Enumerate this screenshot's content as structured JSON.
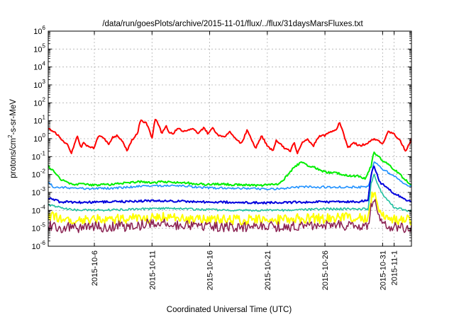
{
  "chart_data": {
    "type": "line",
    "title": "/data/run/goesPlots/archive/2015-11-01/flux/../flux/31daysMarsFluxes.txt",
    "xlabel": "Coordinated Universal Time (UTC)",
    "ylabel": {
      "base": "protons/cm",
      "sup": "2",
      "rest": "-s-sr-MeV"
    },
    "yscale": "log",
    "ylim": [
      1e-06,
      1000000.0
    ],
    "xlim": [
      "2015-10-02",
      "2015-11-02T12:00"
    ],
    "grid": true,
    "x_ticks": [
      "2015-10-6",
      "2015-10-11",
      "2015-10-16",
      "2015-10-21",
      "2015-10-26",
      "2015-10-31",
      "2015-11-1"
    ],
    "y_ticks": [
      {
        "base": "10",
        "exp": "-6"
      },
      {
        "base": "10",
        "exp": "-5"
      },
      {
        "base": "10",
        "exp": "-4"
      },
      {
        "base": "10",
        "exp": "-3"
      },
      {
        "base": "10",
        "exp": "-2"
      },
      {
        "base": "10",
        "exp": "-1"
      },
      {
        "base": "10",
        "exp": "0"
      },
      {
        "base": "10",
        "exp": "1"
      },
      {
        "base": "10",
        "exp": "2"
      },
      {
        "base": "10",
        "exp": "3"
      },
      {
        "base": "10",
        "exp": "4"
      },
      {
        "base": "10",
        "exp": "5"
      },
      {
        "base": "10",
        "exp": "6"
      }
    ],
    "series": [
      {
        "color": "#ff0000",
        "width": 2,
        "points": [
          [
            "2015-10-02",
            4
          ],
          [
            "2015-10-02T18:00",
            1.8
          ],
          [
            "2015-10-03T06:00",
            0.8
          ],
          [
            "2015-10-03T18:00",
            0.4
          ],
          [
            "2015-10-04",
            0.15
          ],
          [
            "2015-10-04T12:00",
            1.5
          ],
          [
            "2015-10-04T20:00",
            0.3
          ],
          [
            "2015-10-05",
            0.6
          ],
          [
            "2015-10-05T12:00",
            0.35
          ],
          [
            "2015-10-06",
            0.3
          ],
          [
            "2015-10-06T08:00",
            1.5
          ],
          [
            "2015-10-06T18:00",
            1.2
          ],
          [
            "2015-10-07T06:00",
            0.5
          ],
          [
            "2015-10-07T14:00",
            1.2
          ],
          [
            "2015-10-08",
            1.5
          ],
          [
            "2015-10-08T12:00",
            0.6
          ],
          [
            "2015-10-08T20:00",
            0.2
          ],
          [
            "2015-10-09T06:00",
            0.8
          ],
          [
            "2015-10-09T18:00",
            2
          ],
          [
            "2015-10-10",
            12
          ],
          [
            "2015-10-10T06:00",
            9
          ],
          [
            "2015-10-10T12:00",
            8
          ],
          [
            "2015-10-10T18:00",
            3
          ],
          [
            "2015-10-11",
            1
          ],
          [
            "2015-10-11T06:00",
            12
          ],
          [
            "2015-10-11T12:00",
            8
          ],
          [
            "2015-10-11T20:00",
            2
          ],
          [
            "2015-10-12T06:00",
            5
          ],
          [
            "2015-10-12T12:00",
            2
          ],
          [
            "2015-10-12T20:00",
            2
          ],
          [
            "2015-10-13T06:00",
            4
          ],
          [
            "2015-10-13T16:00",
            2.5
          ],
          [
            "2015-10-14",
            3
          ],
          [
            "2015-10-14T12:00",
            3.5
          ],
          [
            "2015-10-15",
            2
          ],
          [
            "2015-10-15T12:00",
            4
          ],
          [
            "2015-10-15T20:00",
            2
          ],
          [
            "2015-10-16T06:00",
            4
          ],
          [
            "2015-10-16T18:00",
            1.5
          ],
          [
            "2015-10-17T06:00",
            1.2
          ],
          [
            "2015-10-17T18:00",
            2.5
          ],
          [
            "2015-10-18T06:00",
            1
          ],
          [
            "2015-10-18T18:00",
            0.5
          ],
          [
            "2015-10-19T06:00",
            3
          ],
          [
            "2015-10-19T16:00",
            0.8
          ],
          [
            "2015-10-20",
            0.3
          ],
          [
            "2015-10-20T12:00",
            1.5
          ],
          [
            "2015-10-21",
            0.4
          ],
          [
            "2015-10-21T12:00",
            0.2
          ],
          [
            "2015-10-21T18:00",
            0.8
          ],
          [
            "2015-10-22",
            0.6
          ],
          [
            "2015-10-22T12:00",
            0.3
          ],
          [
            "2015-10-23",
            0.2
          ],
          [
            "2015-10-23T08:00",
            0.7
          ],
          [
            "2015-10-23T14:00",
            0.15
          ],
          [
            "2015-10-24",
            0.6
          ],
          [
            "2015-10-24T12:00",
            0.9
          ],
          [
            "2015-10-25",
            0.4
          ],
          [
            "2015-10-25T12:00",
            1.5
          ],
          [
            "2015-10-26",
            1.5
          ],
          [
            "2015-10-26T12:00",
            2.5
          ],
          [
            "2015-10-27",
            3
          ],
          [
            "2015-10-27T06:00",
            8
          ],
          [
            "2015-10-27T12:00",
            3
          ],
          [
            "2015-10-28",
            0.3
          ],
          [
            "2015-10-28T12:00",
            0.6
          ],
          [
            "2015-10-29",
            0.4
          ],
          [
            "2015-10-29T12:00",
            0.5
          ],
          [
            "2015-10-30",
            0.8
          ],
          [
            "2015-10-30T12:00",
            1
          ],
          [
            "2015-10-31",
            0.5
          ],
          [
            "2015-10-31T12:00",
            2.5
          ],
          [
            "2015-11-01",
            1.8
          ],
          [
            "2015-11-01T12:00",
            0.8
          ],
          [
            "2015-11-02",
            0.2
          ],
          [
            "2015-11-02T12:00",
            1
          ]
        ]
      },
      {
        "color": "#00ee00",
        "width": 2,
        "points": [
          [
            "2015-10-02",
            0.03
          ],
          [
            "2015-10-02T12:00",
            0.015
          ],
          [
            "2015-10-03",
            0.006
          ],
          [
            "2015-10-03T12:00",
            0.004
          ],
          [
            "2015-10-04",
            0.003
          ],
          [
            "2015-10-05",
            0.0028
          ],
          [
            "2015-10-06",
            0.0026
          ],
          [
            "2015-10-07",
            0.0027
          ],
          [
            "2015-10-08",
            0.003
          ],
          [
            "2015-10-09",
            0.0035
          ],
          [
            "2015-10-10",
            0.004
          ],
          [
            "2015-10-11",
            0.0035
          ],
          [
            "2015-10-12",
            0.004
          ],
          [
            "2015-10-13",
            0.0036
          ],
          [
            "2015-10-14",
            0.0034
          ],
          [
            "2015-10-15",
            0.003
          ],
          [
            "2015-10-16",
            0.0028
          ],
          [
            "2015-10-17",
            0.003
          ],
          [
            "2015-10-18",
            0.0027
          ],
          [
            "2015-10-19",
            0.0026
          ],
          [
            "2015-10-20",
            0.0025
          ],
          [
            "2015-10-21",
            0.0026
          ],
          [
            "2015-10-22",
            0.0028
          ],
          [
            "2015-10-22T12:00",
            0.006
          ],
          [
            "2015-10-23",
            0.015
          ],
          [
            "2015-10-23T12:00",
            0.03
          ],
          [
            "2015-10-24",
            0.055
          ],
          [
            "2015-10-24T12:00",
            0.03
          ],
          [
            "2015-10-25",
            0.03
          ],
          [
            "2015-10-25T12:00",
            0.018
          ],
          [
            "2015-10-26",
            0.014
          ],
          [
            "2015-10-27",
            0.012
          ],
          [
            "2015-10-28",
            0.009
          ],
          [
            "2015-10-29",
            0.008
          ],
          [
            "2015-10-29T12:00",
            0.006
          ],
          [
            "2015-10-30",
            0.03
          ],
          [
            "2015-10-30T06:00",
            0.18
          ],
          [
            "2015-10-30T12:00",
            0.12
          ],
          [
            "2015-10-31",
            0.06
          ],
          [
            "2015-11-01",
            0.02
          ],
          [
            "2015-11-02",
            0.005
          ],
          [
            "2015-11-02T12:00",
            0.0025
          ]
        ]
      },
      {
        "color": "#1e90ff",
        "width": 1.6,
        "points": [
          [
            "2015-10-02",
            0.0035
          ],
          [
            "2015-10-02T12:00",
            0.002
          ],
          [
            "2015-10-04",
            0.0018
          ],
          [
            "2015-10-06",
            0.0016
          ],
          [
            "2015-10-08",
            0.0018
          ],
          [
            "2015-10-10",
            0.0022
          ],
          [
            "2015-10-12",
            0.0024
          ],
          [
            "2015-10-14",
            0.0022
          ],
          [
            "2015-10-16",
            0.0018
          ],
          [
            "2015-10-18",
            0.0017
          ],
          [
            "2015-10-20",
            0.0016
          ],
          [
            "2015-10-22",
            0.0016
          ],
          [
            "2015-10-23",
            0.0018
          ],
          [
            "2015-10-24",
            0.002
          ],
          [
            "2015-10-26",
            0.002
          ],
          [
            "2015-10-28",
            0.002
          ],
          [
            "2015-10-29T18:00",
            0.002
          ],
          [
            "2015-10-30",
            0.008
          ],
          [
            "2015-10-30T06:00",
            0.05
          ],
          [
            "2015-10-30T12:00",
            0.04
          ],
          [
            "2015-10-31",
            0.02
          ],
          [
            "2015-11-01",
            0.008
          ],
          [
            "2015-11-02",
            0.003
          ],
          [
            "2015-11-02T12:00",
            0.002
          ]
        ]
      },
      {
        "color": "#0000dd",
        "width": 2,
        "points": [
          [
            "2015-10-02",
            0.0005
          ],
          [
            "2015-10-03",
            0.0003
          ],
          [
            "2015-10-05",
            0.00028
          ],
          [
            "2015-10-07",
            0.0003
          ],
          [
            "2015-10-09",
            0.00032
          ],
          [
            "2015-10-11",
            0.00035
          ],
          [
            "2015-10-13",
            0.00033
          ],
          [
            "2015-10-15",
            0.0003
          ],
          [
            "2015-10-17",
            0.00029
          ],
          [
            "2015-10-19",
            0.00028
          ],
          [
            "2015-10-21",
            0.00027
          ],
          [
            "2015-10-23",
            0.00028
          ],
          [
            "2015-10-25",
            0.0003
          ],
          [
            "2015-10-27",
            0.0003
          ],
          [
            "2015-10-29",
            0.0003
          ],
          [
            "2015-10-29T18:00",
            0.0004
          ],
          [
            "2015-10-30",
            0.01
          ],
          [
            "2015-10-30T06:00",
            0.03
          ],
          [
            "2015-10-30T18:00",
            0.004
          ],
          [
            "2015-10-31T06:00",
            0.002
          ],
          [
            "2015-11-01",
            0.0009
          ],
          [
            "2015-11-02",
            0.0004
          ],
          [
            "2015-11-02T12:00",
            0.0003
          ]
        ]
      },
      {
        "color": "#20c0a0",
        "width": 1.6,
        "points": [
          [
            "2015-10-02",
            0.0002
          ],
          [
            "2015-10-04",
            0.00011
          ],
          [
            "2015-10-06",
            0.0001
          ],
          [
            "2015-10-08",
            0.00011
          ],
          [
            "2015-10-10",
            0.00012
          ],
          [
            "2015-10-12",
            0.00013
          ],
          [
            "2015-10-14",
            0.00012
          ],
          [
            "2015-10-16",
            0.00011
          ],
          [
            "2015-10-18",
            0.0001
          ],
          [
            "2015-10-20",
            0.0001
          ],
          [
            "2015-10-22",
            0.0001
          ],
          [
            "2015-10-24",
            0.00011
          ],
          [
            "2015-10-26",
            0.00012
          ],
          [
            "2015-10-28",
            0.00012
          ],
          [
            "2015-10-29T18:00",
            0.00012
          ],
          [
            "2015-10-30",
            0.003
          ],
          [
            "2015-10-30T06:00",
            0.01
          ],
          [
            "2015-10-30T18:00",
            0.0015
          ],
          [
            "2015-10-31T06:00",
            0.0005
          ],
          [
            "2015-11-01",
            0.00015
          ],
          [
            "2015-11-02",
            0.0001
          ],
          [
            "2015-11-02T12:00",
            0.0001
          ]
        ]
      },
      {
        "color": "#ffff00",
        "width": 2,
        "points": [
          [
            "2015-10-02",
            5e-05
          ],
          [
            "2015-10-04",
            3e-05
          ],
          [
            "2015-10-06",
            3e-05
          ],
          [
            "2015-10-08",
            3.2e-05
          ],
          [
            "2015-10-10",
            3.5e-05
          ],
          [
            "2015-10-12",
            4e-05
          ],
          [
            "2015-10-14",
            3.5e-05
          ],
          [
            "2015-10-16",
            3e-05
          ],
          [
            "2015-10-18",
            3e-05
          ],
          [
            "2015-10-20",
            3e-05
          ],
          [
            "2015-10-22",
            3e-05
          ],
          [
            "2015-10-24",
            3.5e-05
          ],
          [
            "2015-10-26",
            3.5e-05
          ],
          [
            "2015-10-28",
            4e-05
          ],
          [
            "2015-10-29T18:00",
            4e-05
          ],
          [
            "2015-10-30",
            0.0004
          ],
          [
            "2015-10-30T06:00",
            0.0012
          ],
          [
            "2015-10-30T18:00",
            0.0001
          ],
          [
            "2015-10-31T06:00",
            5e-05
          ],
          [
            "2015-11-01",
            3e-05
          ],
          [
            "2015-11-02",
            3e-05
          ],
          [
            "2015-11-02T12:00",
            3e-05
          ]
        ]
      },
      {
        "color": "#8b2252",
        "width": 1.5,
        "points": [
          [
            "2015-10-02",
            1.5e-05
          ],
          [
            "2015-10-03",
            1e-05
          ],
          [
            "2015-10-04",
            1.2e-05
          ],
          [
            "2015-10-05",
            1e-05
          ],
          [
            "2015-10-06",
            1.3e-05
          ],
          [
            "2015-10-07",
            1e-05
          ],
          [
            "2015-10-08",
            1.4e-05
          ],
          [
            "2015-10-09",
            1.2e-05
          ],
          [
            "2015-10-10",
            1.5e-05
          ],
          [
            "2015-10-11",
            2e-05
          ],
          [
            "2015-10-12",
            1.8e-05
          ],
          [
            "2015-10-13",
            1.5e-05
          ],
          [
            "2015-10-14",
            1.4e-05
          ],
          [
            "2015-10-15",
            1.2e-05
          ],
          [
            "2015-10-16",
            1.3e-05
          ],
          [
            "2015-10-17",
            1.2e-05
          ],
          [
            "2015-10-18",
            1.1e-05
          ],
          [
            "2015-10-19",
            1.2e-05
          ],
          [
            "2015-10-20",
            1.1e-05
          ],
          [
            "2015-10-21",
            1.3e-05
          ],
          [
            "2015-10-22",
            1.2e-05
          ],
          [
            "2015-10-23",
            1.3e-05
          ],
          [
            "2015-10-24",
            1.5e-05
          ],
          [
            "2015-10-25",
            1.4e-05
          ],
          [
            "2015-10-26",
            1.5e-05
          ],
          [
            "2015-10-27",
            1.6e-05
          ],
          [
            "2015-10-28",
            1.4e-05
          ],
          [
            "2015-10-29",
            1.5e-05
          ],
          [
            "2015-10-29T18:00",
            1.5e-05
          ],
          [
            "2015-10-30",
            0.0002
          ],
          [
            "2015-10-30T06:00",
            0.0005
          ],
          [
            "2015-10-30T18:00",
            3e-05
          ],
          [
            "2015-10-31T06:00",
            1.5e-05
          ],
          [
            "2015-11-01",
            1.2e-05
          ],
          [
            "2015-11-02",
            1e-05
          ],
          [
            "2015-11-02T12:00",
            1.2e-05
          ]
        ]
      }
    ]
  }
}
